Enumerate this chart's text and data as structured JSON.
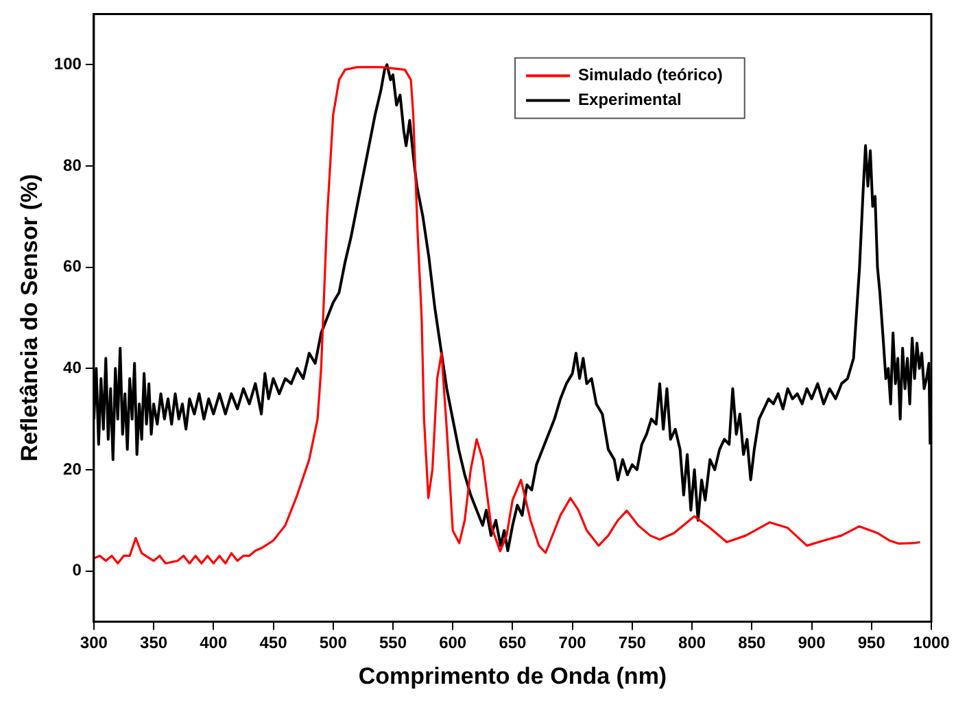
{
  "chart_data": {
    "type": "line",
    "xlabel": "Comprimento de Onda (nm)",
    "ylabel": "Refletância do Sensor (%)",
    "xlim": [
      300,
      1000
    ],
    "ylim": [
      -10,
      110
    ],
    "xticks": [
      300,
      350,
      400,
      450,
      500,
      550,
      600,
      650,
      700,
      750,
      800,
      850,
      900,
      950,
      1000
    ],
    "yticks": [
      0,
      20,
      40,
      60,
      80,
      100
    ],
    "grid": false,
    "legend": "top",
    "marker": "none",
    "line_style": "solid",
    "series": [
      {
        "name": "Simulado (teórico)",
        "color": "#ff0000",
        "x": [
          300,
          305,
          310,
          315,
          320,
          325,
          330,
          335,
          340,
          350,
          355,
          360,
          370,
          375,
          380,
          385,
          390,
          395,
          400,
          405,
          410,
          415,
          420,
          425,
          430,
          435,
          440,
          450,
          460,
          470,
          480,
          487,
          490,
          495,
          500,
          505,
          510,
          520,
          540,
          560,
          565,
          567,
          570.6,
          574,
          576,
          579.6,
          583,
          587,
          590.6,
          595,
          600,
          605.5,
          610,
          615,
          620,
          625,
          632,
          639.6,
          645,
          650,
          657,
          665,
          672,
          677.6,
          685,
          690,
          698.4,
          705,
          712,
          722,
          730,
          738,
          745.5,
          755,
          765,
          773,
          785,
          802,
          815,
          829,
          845,
          865,
          880,
          896,
          910,
          925,
          939.6,
          955,
          965,
          973,
          985,
          990.6
        ],
        "values": [
          2.5,
          3,
          2,
          3,
          1.5,
          3,
          3,
          6.5,
          3.5,
          2,
          3,
          1.5,
          2,
          3,
          1.5,
          3,
          1.5,
          3,
          1.5,
          3,
          1.5,
          3.5,
          2,
          3,
          3,
          4,
          4.5,
          6,
          9,
          15,
          22,
          30,
          40,
          70,
          90,
          97,
          99,
          99.5,
          99.5,
          99,
          97,
          90,
          67,
          50,
          30,
          14.4,
          20,
          38,
          43,
          28,
          8,
          5.5,
          10,
          20,
          26,
          22,
          9,
          3.9,
          7,
          14,
          18,
          10,
          5,
          3.6,
          8,
          11,
          14.4,
          12,
          8,
          5,
          7,
          10,
          11.9,
          9,
          7,
          6.2,
          7.5,
          10.8,
          8.5,
          5.7,
          7,
          9.6,
          8.5,
          5,
          6,
          7,
          8.8,
          7.5,
          6,
          5.4,
          5.5,
          5.7
        ]
      },
      {
        "name": "Experimental",
        "color": "#000000",
        "x": [
          300,
          302,
          304,
          306,
          308,
          310,
          312,
          314,
          316,
          318,
          320,
          322,
          324,
          326,
          328,
          330,
          332,
          334,
          336,
          338,
          340,
          342,
          344,
          346,
          348,
          350,
          353,
          356,
          359,
          362,
          365,
          368,
          371,
          374,
          377,
          380,
          384,
          388,
          392,
          396,
          400,
          405,
          410,
          415,
          420,
          425,
          430,
          435,
          440,
          443,
          446,
          450,
          455,
          460,
          465,
          470,
          475,
          480,
          485,
          490,
          495,
          500,
          505,
          510,
          515,
          520,
          525,
          530,
          535,
          540,
          543,
          545,
          548,
          550,
          553,
          556,
          559,
          561,
          564,
          567,
          570,
          575,
          580,
          585,
          590,
          595,
          600,
          605,
          610,
          615,
          620,
          625,
          628,
          632,
          636,
          640,
          643,
          646,
          650,
          654,
          658,
          662,
          666,
          670,
          675,
          680,
          685,
          690,
          695,
          700,
          703,
          706,
          709,
          712,
          716,
          720,
          725,
          730,
          735,
          738,
          742,
          746,
          750,
          754,
          758,
          762,
          766,
          770,
          773,
          776,
          779,
          782,
          786,
          790,
          793,
          796,
          799,
          802,
          805,
          808,
          811,
          815,
          819,
          823,
          827,
          831,
          834,
          837,
          840,
          843,
          846,
          849,
          852,
          856,
          860,
          864,
          868,
          872,
          876,
          880,
          884,
          888,
          892,
          896,
          900,
          905,
          910,
          915,
          920,
          925,
          930,
          935,
          940,
          943,
          945,
          947,
          949,
          951,
          953,
          955,
          957,
          960,
          962,
          964,
          966,
          968,
          970,
          972,
          974,
          976,
          978,
          980,
          982,
          984,
          986,
          988,
          990,
          992,
          994,
          996,
          998,
          999
        ],
        "values": [
          30,
          40,
          25,
          38,
          28,
          42,
          26,
          36,
          22,
          40,
          30,
          44,
          27,
          35,
          24,
          38,
          30,
          41,
          23,
          33,
          26,
          39,
          29,
          37,
          27,
          33,
          29,
          35,
          30,
          34,
          29,
          35,
          30,
          33,
          28,
          34,
          31,
          35,
          30,
          34,
          31,
          35,
          31,
          35,
          32,
          36,
          33,
          37,
          31,
          39,
          34,
          38,
          35,
          38,
          37,
          40,
          38,
          43,
          41,
          47,
          50,
          53,
          55,
          61,
          66,
          72,
          78,
          84,
          90,
          95,
          99,
          100,
          97,
          98,
          92,
          94,
          87,
          84,
          89,
          82,
          76,
          70,
          62,
          52,
          44,
          36,
          30,
          24,
          19,
          15,
          12,
          9,
          12,
          7,
          10,
          5,
          8,
          4,
          9,
          13,
          11,
          17,
          16,
          21,
          24,
          27,
          30,
          34,
          37,
          39,
          43,
          38,
          42,
          37,
          38,
          33,
          31,
          24,
          22,
          18,
          22,
          19,
          21,
          20,
          25,
          27,
          30,
          29,
          37,
          28,
          36,
          26,
          28,
          24,
          15,
          23,
          12,
          20,
          10,
          18,
          14,
          22,
          20,
          24,
          26,
          25,
          36,
          27,
          31,
          23,
          26,
          18,
          24,
          30,
          32,
          34,
          33,
          35,
          32,
          36,
          34,
          35,
          33,
          36,
          34,
          37,
          33,
          36,
          34,
          37,
          38,
          42,
          60,
          75,
          84,
          76,
          83,
          72,
          74,
          60,
          55,
          45,
          38,
          40,
          33,
          47,
          37,
          42,
          30,
          44,
          36,
          42,
          33,
          46,
          38,
          45,
          40,
          43,
          36,
          38,
          41,
          25
        ]
      }
    ]
  }
}
